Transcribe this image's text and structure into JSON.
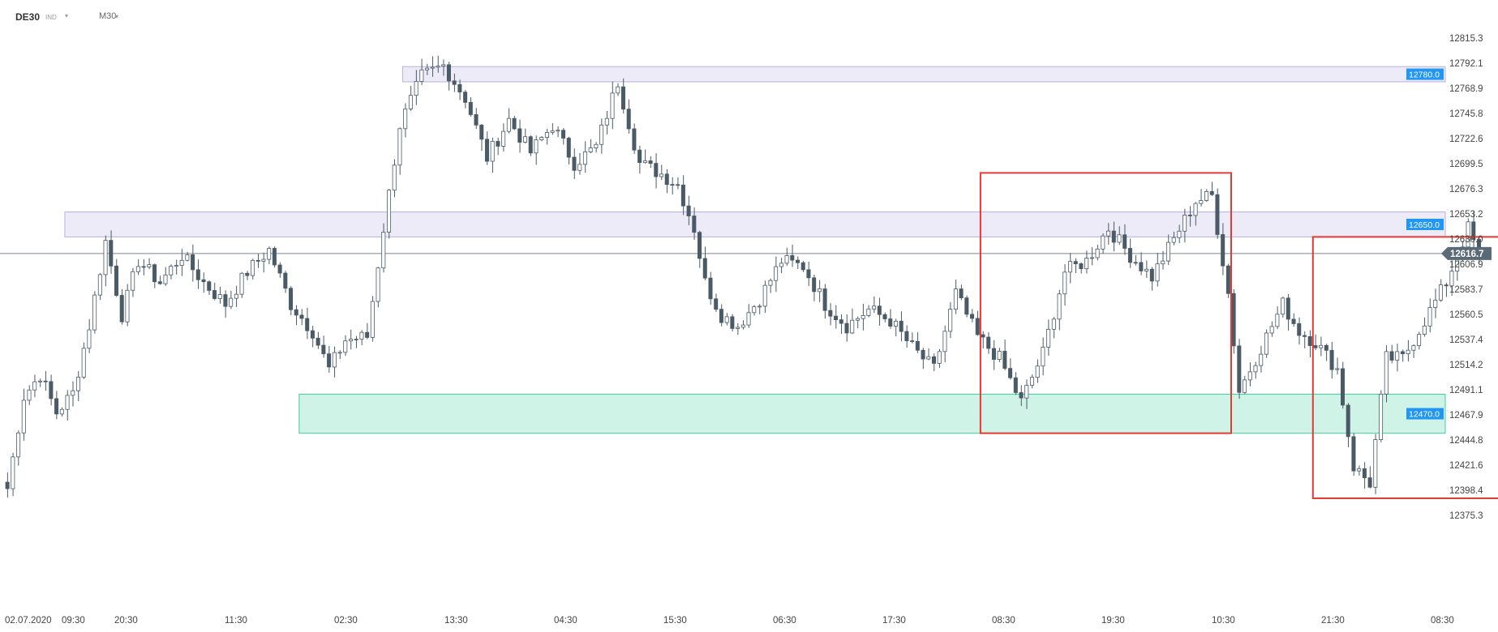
{
  "header": {
    "symbol": "DE30",
    "symbol_tag": "IND",
    "timeframe": "M30"
  },
  "colors": {
    "bull_body": "#ffffff",
    "bear_body": "#4a5a67",
    "wick": "#4a5a67",
    "resistance_zone": "#b9aee5",
    "support_zone": "#3fcf9a",
    "level_label_bg": "#2196f3",
    "price_marker_bg": "#5a6a78",
    "highlight_box": "#e53935"
  },
  "chart_data": {
    "type": "candlestick",
    "y_ticks": [
      "12815.3",
      "12792.1",
      "12768.9",
      "12745.8",
      "12722.6",
      "12699.5",
      "12676.3",
      "12653.2",
      "12630.0",
      "12606.9",
      "12583.7",
      "12560.5",
      "12537.4",
      "12514.2",
      "12491.1",
      "12467.9",
      "12444.8",
      "12421.6",
      "12398.4",
      "12375.3"
    ],
    "ylim": [
      12375.3,
      12815.3
    ],
    "x_ticks": [
      "02.07.2020",
      "09:30",
      "20:30",
      "11:30",
      "02:30",
      "13:30",
      "04:30",
      "15:30",
      "06:30",
      "17:30",
      "08:30",
      "19:30",
      "10:30",
      "21:30",
      "08:30"
    ],
    "current_price": "12616.7",
    "zones": [
      {
        "label": "12780.0",
        "low": 12775,
        "high": 12789,
        "kind": "resistance",
        "from_bar": 73,
        "label_show": true
      },
      {
        "label": "12650.0",
        "low": 12632,
        "high": 12655,
        "kind": "resistance",
        "from_bar": 11,
        "label_show": true
      },
      {
        "label": "12470.0",
        "low": 12451,
        "high": 12487,
        "kind": "support",
        "from_bar": 54,
        "label_show": true
      }
    ],
    "highlight_boxes": [
      {
        "from_bar": 179,
        "to_bar": 225,
        "low": 12451,
        "high": 12691
      },
      {
        "from_bar": 240,
        "to_bar": 285,
        "low": 12391,
        "high": 12632
      }
    ],
    "anchors": [
      [
        0,
        12400
      ],
      [
        3,
        12485
      ],
      [
        6,
        12505
      ],
      [
        9,
        12470
      ],
      [
        12,
        12488
      ],
      [
        15,
        12550
      ],
      [
        18,
        12628
      ],
      [
        21,
        12560
      ],
      [
        24,
        12610
      ],
      [
        28,
        12590
      ],
      [
        32,
        12615
      ],
      [
        36,
        12590
      ],
      [
        40,
        12570
      ],
      [
        44,
        12600
      ],
      [
        48,
        12620
      ],
      [
        52,
        12570
      ],
      [
        56,
        12545
      ],
      [
        59,
        12510
      ],
      [
        62,
        12537
      ],
      [
        66,
        12540
      ],
      [
        69,
        12640
      ],
      [
        72,
        12735
      ],
      [
        76,
        12780
      ],
      [
        80,
        12790
      ],
      [
        84,
        12760
      ],
      [
        88,
        12705
      ],
      [
        92,
        12740
      ],
      [
        96,
        12710
      ],
      [
        100,
        12735
      ],
      [
        104,
        12700
      ],
      [
        108,
        12715
      ],
      [
        112,
        12775
      ],
      [
        116,
        12700
      ],
      [
        120,
        12690
      ],
      [
        123,
        12680
      ],
      [
        126,
        12640
      ],
      [
        128,
        12590
      ],
      [
        131,
        12560
      ],
      [
        134,
        12550
      ],
      [
        138,
        12575
      ],
      [
        142,
        12610
      ],
      [
        146,
        12605
      ],
      [
        150,
        12570
      ],
      [
        154,
        12550
      ],
      [
        158,
        12565
      ],
      [
        162,
        12555
      ],
      [
        166,
        12530
      ],
      [
        170,
        12510
      ],
      [
        174,
        12580
      ],
      [
        178,
        12540
      ],
      [
        182,
        12520
      ],
      [
        186,
        12480
      ],
      [
        190,
        12525
      ],
      [
        194,
        12600
      ],
      [
        198,
        12610
      ],
      [
        202,
        12640
      ],
      [
        206,
        12615
      ],
      [
        210,
        12595
      ],
      [
        214,
        12630
      ],
      [
        218,
        12665
      ],
      [
        221,
        12670
      ],
      [
        224,
        12580
      ],
      [
        226,
        12490
      ],
      [
        230,
        12530
      ],
      [
        234,
        12570
      ],
      [
        237,
        12545
      ],
      [
        240,
        12535
      ],
      [
        244,
        12510
      ],
      [
        247,
        12420
      ],
      [
        250,
        12405
      ],
      [
        253,
        12520
      ],
      [
        256,
        12520
      ],
      [
        260,
        12555
      ],
      [
        264,
        12590
      ],
      [
        268,
        12640
      ],
      [
        270,
        12616
      ]
    ]
  }
}
